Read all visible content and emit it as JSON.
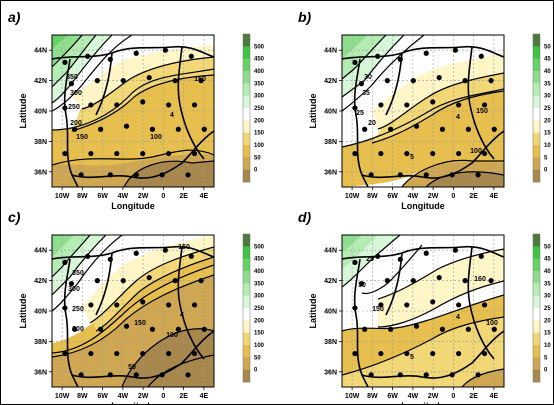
{
  "chart_data": [
    {
      "type": "heatmap",
      "panel_label": "a)",
      "xlabel": "Longitude",
      "ylabel": "Latitude",
      "x_ticks": [
        "10W",
        "8W",
        "6W",
        "4W",
        "2W",
        "0",
        "2E",
        "4E"
      ],
      "y_ticks": [
        "44N",
        "42N",
        "40N",
        "38N",
        "36N"
      ],
      "colorbar": {
        "ticks": [
          "500",
          "450",
          "400",
          "350",
          "300",
          "250",
          "200",
          "150",
          "100",
          "50",
          "0"
        ]
      },
      "contour_labels": [
        "350",
        "300",
        "250",
        "200",
        "150",
        "100",
        "150",
        "4"
      ]
    },
    {
      "type": "heatmap",
      "panel_label": "b)",
      "xlabel": "Longitude",
      "ylabel": "Latitude",
      "x_ticks": [
        "10W",
        "8W",
        "6W",
        "4W",
        "2W",
        "0",
        "2E",
        "4E"
      ],
      "y_ticks": [
        "44N",
        "42N",
        "40N",
        "38N",
        "36N"
      ],
      "colorbar": {
        "ticks": [
          "50",
          "45",
          "40",
          "35",
          "30",
          "25",
          "20",
          "15",
          "10",
          "5",
          "0"
        ]
      },
      "contour_labels": [
        "30",
        "35",
        "25",
        "20",
        "150",
        "100",
        "5",
        "4"
      ]
    },
    {
      "type": "heatmap",
      "panel_label": "c)",
      "xlabel": "Longitude",
      "ylabel": "Latitude",
      "x_ticks": [
        "10W",
        "8W",
        "6W",
        "4W",
        "2W",
        "0",
        "2E",
        "4E"
      ],
      "y_ticks": [
        "44N",
        "42N",
        "40N",
        "38N",
        "36N"
      ],
      "colorbar": {
        "ticks": [
          "500",
          "450",
          "400",
          "350",
          "300",
          "250",
          "200",
          "150",
          "100",
          "50",
          "0"
        ]
      },
      "contour_labels": [
        "150",
        "350",
        "300",
        "250",
        "200",
        "150",
        "100",
        "50",
        "4"
      ]
    },
    {
      "type": "heatmap",
      "panel_label": "d)",
      "xlabel": "Longitude",
      "ylabel": "Latitude",
      "x_ticks": [
        "10W",
        "8W",
        "6W",
        "4W",
        "2W",
        "0",
        "2E",
        "4E"
      ],
      "y_ticks": [
        "44N",
        "42N",
        "40N",
        "38N",
        "36N"
      ],
      "colorbar": {
        "ticks": [
          "50",
          "45",
          "40",
          "35",
          "30",
          "25",
          "20",
          "15",
          "10",
          "5",
          "0"
        ]
      },
      "contour_labels": [
        "25",
        "30",
        "160",
        "150",
        "100",
        "5",
        "4"
      ]
    }
  ],
  "colors": {
    "scale": [
      "#4a7a3c",
      "#3ec43e",
      "#66d266",
      "#8ede8e",
      "#b4ecb4",
      "#d8f6d8",
      "#ffffff",
      "#fff6c8",
      "#f2d777",
      "#e6bf4f",
      "#cfa752",
      "#a8874c"
    ],
    "grid": "#9a9a9a",
    "contour": "#000000",
    "station": "#000000"
  }
}
